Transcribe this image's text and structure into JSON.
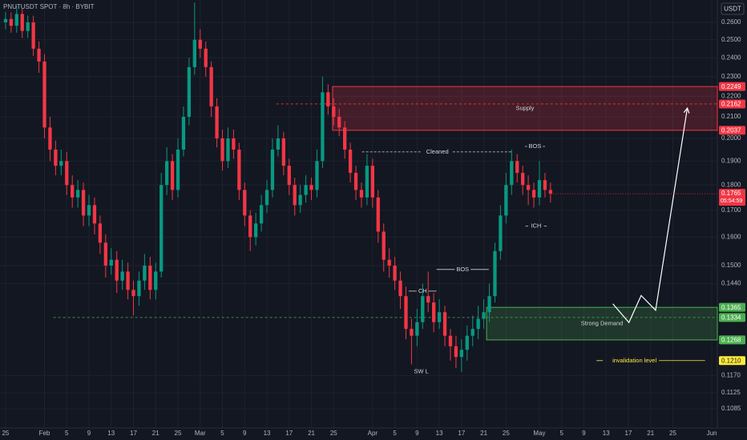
{
  "chart_data": {
    "type": "candlestick",
    "title": "PNUTUSDT SPOT · 8h · BYBIT",
    "currency": "USDT",
    "countdown": "05:54:59",
    "log_scale": true,
    "grid": true,
    "up_color": "#089981",
    "down_color": "#f23645",
    "xlim": [
      -1,
      128
    ],
    "ylim": [
      0.1039,
      0.2735
    ],
    "xticks": [
      {
        "value": 0,
        "label": "25"
      },
      {
        "value": 7,
        "label": "Feb"
      },
      {
        "value": 11,
        "label": "5"
      },
      {
        "value": 15,
        "label": "9"
      },
      {
        "value": 19,
        "label": "13"
      },
      {
        "value": 23,
        "label": "17"
      },
      {
        "value": 27,
        "label": "21"
      },
      {
        "value": 31,
        "label": "25"
      },
      {
        "value": 35,
        "label": "Mar"
      },
      {
        "value": 39,
        "label": "5"
      },
      {
        "value": 43,
        "label": "9"
      },
      {
        "value": 47,
        "label": "13"
      },
      {
        "value": 51,
        "label": "17"
      },
      {
        "value": 55,
        "label": "21"
      },
      {
        "value": 59,
        "label": "25"
      },
      {
        "value": 66,
        "label": "Apr"
      },
      {
        "value": 70,
        "label": "5"
      },
      {
        "value": 74,
        "label": "9"
      },
      {
        "value": 78,
        "label": "13"
      },
      {
        "value": 82,
        "label": "17"
      },
      {
        "value": 86,
        "label": "21"
      },
      {
        "value": 90,
        "label": "25"
      },
      {
        "value": 96,
        "label": "May"
      },
      {
        "value": 100,
        "label": "5"
      },
      {
        "value": 104,
        "label": "9"
      },
      {
        "value": 108,
        "label": "13"
      },
      {
        "value": 112,
        "label": "17"
      },
      {
        "value": 116,
        "label": "21"
      },
      {
        "value": 120,
        "label": "25"
      },
      {
        "value": 127,
        "label": "Jun"
      }
    ],
    "yticks": [
      {
        "value": 0.26,
        "label": "0.2600"
      },
      {
        "value": 0.25,
        "label": "0.2500"
      },
      {
        "value": 0.24,
        "label": "0.2400"
      },
      {
        "value": 0.23,
        "label": "0.2300"
      },
      {
        "value": 0.22,
        "label": "0.2200"
      },
      {
        "value": 0.21,
        "label": "0.2100"
      },
      {
        "value": 0.2,
        "label": "0.2000"
      },
      {
        "value": 0.19,
        "label": "0.1900"
      },
      {
        "value": 0.18,
        "label": "0.1800"
      },
      {
        "value": 0.17,
        "label": "0.1700"
      },
      {
        "value": 0.16,
        "label": "0.1600"
      },
      {
        "value": 0.15,
        "label": "0.1500"
      },
      {
        "value": 0.144,
        "label": "0.1440"
      },
      {
        "value": 0.117,
        "label": "0.1170"
      },
      {
        "value": 0.1125,
        "label": "0.1125"
      },
      {
        "value": 0.1085,
        "label": "0.1085"
      }
    ],
    "x": [
      0,
      1,
      2,
      3,
      4,
      5,
      6,
      7,
      8,
      9,
      10,
      11,
      12,
      13,
      14,
      15,
      16,
      17,
      18,
      19,
      20,
      21,
      22,
      23,
      24,
      25,
      26,
      27,
      28,
      29,
      30,
      31,
      32,
      33,
      34,
      35,
      36,
      37,
      38,
      39,
      40,
      41,
      42,
      43,
      44,
      45,
      46,
      47,
      48,
      49,
      50,
      51,
      52,
      53,
      54,
      55,
      56,
      57,
      58,
      59,
      60,
      61,
      62,
      63,
      64,
      65,
      66,
      67,
      68,
      69,
      70,
      71,
      72,
      73,
      74,
      75,
      76,
      77,
      78,
      79,
      80,
      81,
      82,
      83,
      84,
      85,
      86,
      87,
      88,
      89,
      90,
      91,
      92,
      93,
      94,
      95,
      96,
      97,
      98
    ],
    "open": [
      0.26,
      0.262,
      0.258,
      0.265,
      0.255,
      0.26,
      0.245,
      0.238,
      0.205,
      0.195,
      0.188,
      0.19,
      0.18,
      0.175,
      0.178,
      0.168,
      0.172,
      0.165,
      0.158,
      0.15,
      0.152,
      0.145,
      0.148,
      0.142,
      0.14,
      0.145,
      0.15,
      0.142,
      0.148,
      0.18,
      0.19,
      0.178,
      0.195,
      0.21,
      0.235,
      0.25,
      0.245,
      0.235,
      0.215,
      0.2,
      0.19,
      0.2,
      0.195,
      0.178,
      0.168,
      0.16,
      0.165,
      0.172,
      0.178,
      0.195,
      0.2,
      0.188,
      0.18,
      0.172,
      0.176,
      0.18,
      0.178,
      0.19,
      0.222,
      0.215,
      0.21,
      0.205,
      0.195,
      0.185,
      0.178,
      0.175,
      0.188,
      0.175,
      0.162,
      0.152,
      0.15,
      0.145,
      0.14,
      0.13,
      0.128,
      0.132,
      0.14,
      0.138,
      0.132,
      0.135,
      0.128,
      0.125,
      0.122,
      0.124,
      0.128,
      0.13,
      0.133,
      0.135,
      0.14,
      0.155,
      0.168,
      0.18,
      0.19,
      0.185,
      0.18,
      0.178,
      0.175,
      0.182,
      0.178
    ],
    "high": [
      0.266,
      0.266,
      0.27,
      0.268,
      0.264,
      0.264,
      0.249,
      0.242,
      0.21,
      0.199,
      0.195,
      0.194,
      0.184,
      0.182,
      0.181,
      0.176,
      0.175,
      0.168,
      0.161,
      0.156,
      0.155,
      0.152,
      0.151,
      0.145,
      0.148,
      0.154,
      0.153,
      0.151,
      0.185,
      0.196,
      0.193,
      0.2,
      0.215,
      0.24,
      0.272,
      0.256,
      0.249,
      0.238,
      0.219,
      0.204,
      0.205,
      0.204,
      0.198,
      0.181,
      0.17,
      0.169,
      0.176,
      0.182,
      0.2,
      0.206,
      0.203,
      0.191,
      0.183,
      0.18,
      0.184,
      0.183,
      0.195,
      0.23,
      0.226,
      0.219,
      0.214,
      0.208,
      0.198,
      0.188,
      0.181,
      0.193,
      0.191,
      0.178,
      0.165,
      0.156,
      0.153,
      0.148,
      0.143,
      0.133,
      0.136,
      0.144,
      0.148,
      0.141,
      0.139,
      0.137,
      0.13,
      0.128,
      0.127,
      0.131,
      0.134,
      0.137,
      0.139,
      0.144,
      0.158,
      0.172,
      0.185,
      0.195,
      0.193,
      0.188,
      0.184,
      0.181,
      0.19,
      0.185,
      0.181
    ],
    "low": [
      0.256,
      0.254,
      0.254,
      0.251,
      0.251,
      0.241,
      0.232,
      0.2,
      0.19,
      0.184,
      0.184,
      0.176,
      0.171,
      0.171,
      0.164,
      0.164,
      0.161,
      0.154,
      0.146,
      0.147,
      0.141,
      0.142,
      0.139,
      0.134,
      0.137,
      0.142,
      0.139,
      0.139,
      0.146,
      0.176,
      0.174,
      0.175,
      0.192,
      0.206,
      0.231,
      0.24,
      0.23,
      0.21,
      0.196,
      0.186,
      0.187,
      0.191,
      0.174,
      0.164,
      0.155,
      0.157,
      0.162,
      0.169,
      0.175,
      0.192,
      0.184,
      0.176,
      0.168,
      0.169,
      0.173,
      0.174,
      0.175,
      0.187,
      0.211,
      0.206,
      0.201,
      0.191,
      0.181,
      0.174,
      0.171,
      0.172,
      0.171,
      0.158,
      0.148,
      0.146,
      0.142,
      0.136,
      0.127,
      0.12,
      0.125,
      0.13,
      0.135,
      0.129,
      0.13,
      0.125,
      0.121,
      0.119,
      0.118,
      0.121,
      0.125,
      0.127,
      0.13,
      0.132,
      0.138,
      0.152,
      0.165,
      0.176,
      0.181,
      0.176,
      0.172,
      0.171,
      0.172,
      0.175,
      0.173
    ],
    "close": [
      0.262,
      0.258,
      0.265,
      0.255,
      0.26,
      0.245,
      0.238,
      0.205,
      0.195,
      0.188,
      0.19,
      0.18,
      0.175,
      0.178,
      0.168,
      0.172,
      0.165,
      0.158,
      0.15,
      0.152,
      0.145,
      0.148,
      0.142,
      0.14,
      0.145,
      0.15,
      0.142,
      0.148,
      0.18,
      0.19,
      0.178,
      0.195,
      0.21,
      0.235,
      0.25,
      0.245,
      0.235,
      0.215,
      0.2,
      0.19,
      0.2,
      0.195,
      0.178,
      0.168,
      0.16,
      0.165,
      0.172,
      0.178,
      0.195,
      0.2,
      0.188,
      0.18,
      0.172,
      0.176,
      0.18,
      0.178,
      0.19,
      0.222,
      0.215,
      0.21,
      0.205,
      0.195,
      0.185,
      0.178,
      0.175,
      0.188,
      0.175,
      0.162,
      0.152,
      0.15,
      0.145,
      0.14,
      0.13,
      0.128,
      0.132,
      0.14,
      0.138,
      0.132,
      0.135,
      0.128,
      0.125,
      0.122,
      0.124,
      0.128,
      0.13,
      0.133,
      0.135,
      0.14,
      0.155,
      0.168,
      0.18,
      0.19,
      0.185,
      0.18,
      0.178,
      0.175,
      0.182,
      0.178,
      0.1765
    ],
    "zones": [
      {
        "name": "Supply",
        "color": "#f23645",
        "x_start": 58.8,
        "mid_start": 48.7,
        "top": {
          "value": 0.2249,
          "label": "0.2249"
        },
        "mid": {
          "value": 0.2162,
          "label": "0.2162"
        },
        "bottom": {
          "value": 0.2037,
          "label": "0.2037"
        }
      },
      {
        "name": "Strong Demand",
        "color": "#4caf50",
        "x_start": 86.5,
        "mid_start": 8.6,
        "top": {
          "value": 0.1365,
          "label": "0.1365"
        },
        "mid": {
          "value": 0.1334,
          "label": "0.1334"
        },
        "bottom": {
          "value": 0.1268,
          "label": "0.1268"
        }
      }
    ],
    "invalidation": {
      "text": "invalidation level",
      "color": "#ffeb3b",
      "x_start": 117.5,
      "x_end": 125.8,
      "level": {
        "value": 0.121,
        "label": "0.1210"
      }
    },
    "annotations": [
      {
        "text": "Cleaned",
        "price": 0.194,
        "x_start": 64.1,
        "x_end": 91.2,
        "dashed": true
      },
      {
        "text": "BOS",
        "price": 0.1964,
        "x_start": 93.4,
        "x_end": 97.0,
        "dashed": false
      },
      {
        "text": "BOS",
        "price": 0.1487,
        "x_start": 77.5,
        "x_end": 86.9,
        "dashed": false
      },
      {
        "text": "CH",
        "price": 0.1416,
        "x_start": 72.5,
        "x_end": 77.5,
        "dashed": false
      },
      {
        "text": "ICH",
        "price": 0.164,
        "x_start": 93.5,
        "x_end": 97.3,
        "dashed": false
      },
      {
        "text": "SW L",
        "price": 0.118,
        "x_start": 73.0,
        "x_end": 76.5,
        "dashed": false
      }
    ],
    "projection": {
      "color": "#ffffff",
      "x": [
        109.2,
        112.1,
        114.3,
        116.9,
        122.6
      ],
      "y": [
        0.1376,
        0.1319,
        0.1402,
        0.1356,
        0.2142
      ]
    }
  }
}
